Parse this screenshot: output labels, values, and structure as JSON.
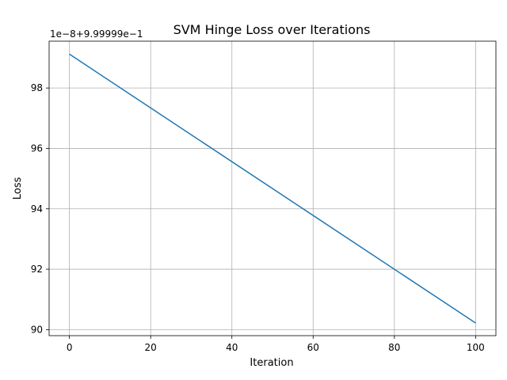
{
  "chart_data": {
    "type": "line",
    "title": "SVM Hinge Loss over Iterations",
    "xlabel": "Iteration",
    "ylabel": "Loss",
    "y_offset_label": "1e−8+9.99999e−1",
    "xlim": [
      -5,
      105
    ],
    "ylim": [
      89.8,
      99.55
    ],
    "x_ticks": [
      0,
      20,
      40,
      60,
      80,
      100
    ],
    "y_ticks": [
      90,
      92,
      94,
      96,
      98
    ],
    "grid": true,
    "series": [
      {
        "color": "#1f77b4",
        "x": [
          0,
          100
        ],
        "y": [
          99.12,
          90.22
        ]
      }
    ]
  }
}
